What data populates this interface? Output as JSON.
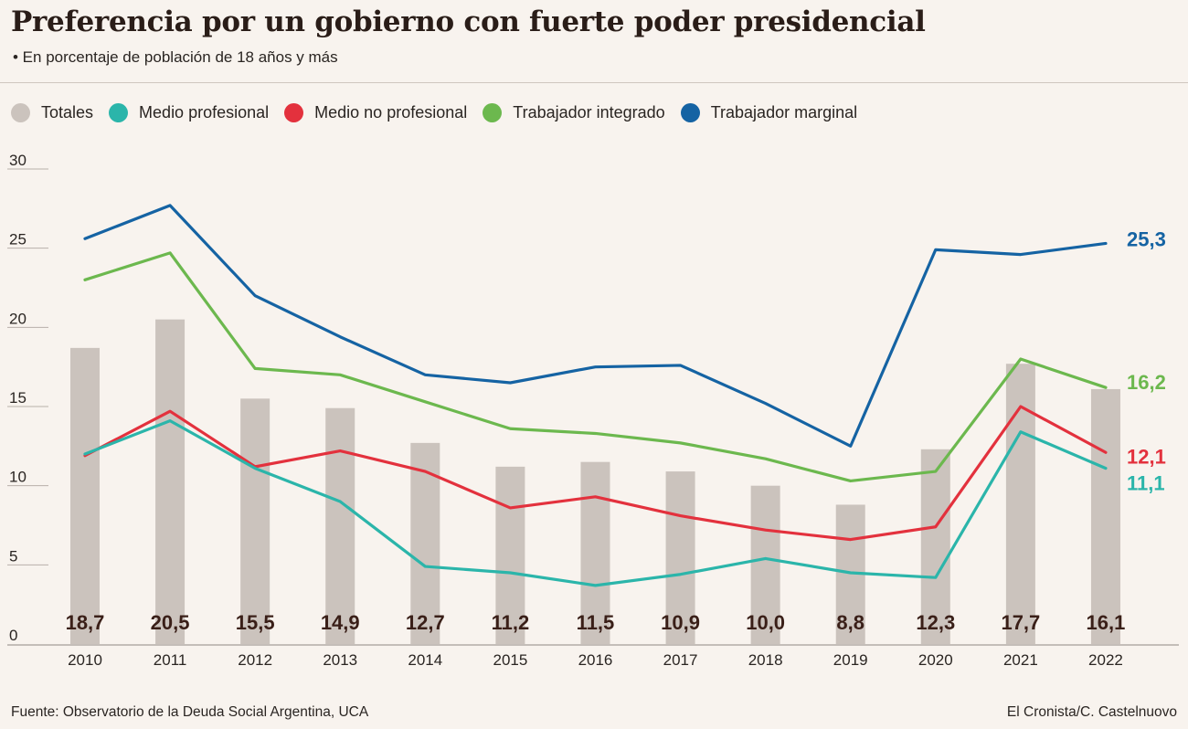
{
  "title": "Preferencia por un gobierno con fuerte poder presidencial",
  "subtitle": "• En porcentaje de población de 18 años y más",
  "source": "Fuente: Observatorio de la Deuda Social Argentina, UCA",
  "credit": "El Cronista/C. Castelnuovo",
  "legend": [
    {
      "label": "Totales",
      "color": "#cbc3bd"
    },
    {
      "label": "Medio profesional",
      "color": "#2bb5aa"
    },
    {
      "label": "Medio no profesional",
      "color": "#e3313d"
    },
    {
      "label": "Trabajador integrado",
      "color": "#6cb84e"
    },
    {
      "label": "Trabajador marginal",
      "color": "#1563a3"
    }
  ],
  "chart_data": {
    "type": "bar",
    "categories": [
      "2010",
      "2011",
      "2012",
      "2013",
      "2014",
      "2015",
      "2016",
      "2017",
      "2018",
      "2019",
      "2020",
      "2021",
      "2022"
    ],
    "ylim": [
      0,
      30
    ],
    "yticks": [
      "0",
      "5",
      "10",
      "15",
      "20",
      "25",
      "30"
    ],
    "bar_series": {
      "name": "Totales",
      "color": "#cbc3bd",
      "values": [
        18.7,
        20.5,
        15.5,
        14.9,
        12.7,
        11.2,
        11.5,
        10.9,
        10.0,
        8.8,
        12.3,
        17.7,
        16.1
      ],
      "labels": [
        "18,7",
        "20,5",
        "15,5",
        "14,9",
        "12,7",
        "11,2",
        "11,5",
        "10,9",
        "10,0",
        "8,8",
        "12,3",
        "17,7",
        "16,1"
      ]
    },
    "line_series": [
      {
        "name": "Trabajador marginal",
        "color": "#1563a3",
        "values": [
          25.6,
          27.7,
          22.0,
          19.4,
          17.0,
          16.5,
          17.5,
          17.6,
          15.2,
          12.5,
          24.9,
          24.6,
          25.3
        ],
        "end_label": "25,3"
      },
      {
        "name": "Trabajador integrado",
        "color": "#6cb84e",
        "values": [
          23.0,
          24.7,
          17.4,
          17.0,
          15.3,
          13.6,
          13.3,
          12.7,
          11.7,
          10.3,
          10.9,
          18.0,
          16.2
        ],
        "end_label": "16,2"
      },
      {
        "name": "Medio no profesional",
        "color": "#e3313d",
        "values": [
          11.9,
          14.7,
          11.2,
          12.2,
          10.9,
          8.6,
          9.3,
          8.1,
          7.2,
          6.6,
          7.4,
          15.0,
          12.1
        ],
        "end_label": "12,1"
      },
      {
        "name": "Medio profesional",
        "color": "#2bb5aa",
        "values": [
          12.0,
          14.1,
          11.1,
          9.0,
          4.9,
          4.5,
          3.7,
          4.4,
          5.4,
          4.5,
          4.2,
          13.4,
          11.1
        ],
        "end_label": "11,1"
      }
    ]
  }
}
